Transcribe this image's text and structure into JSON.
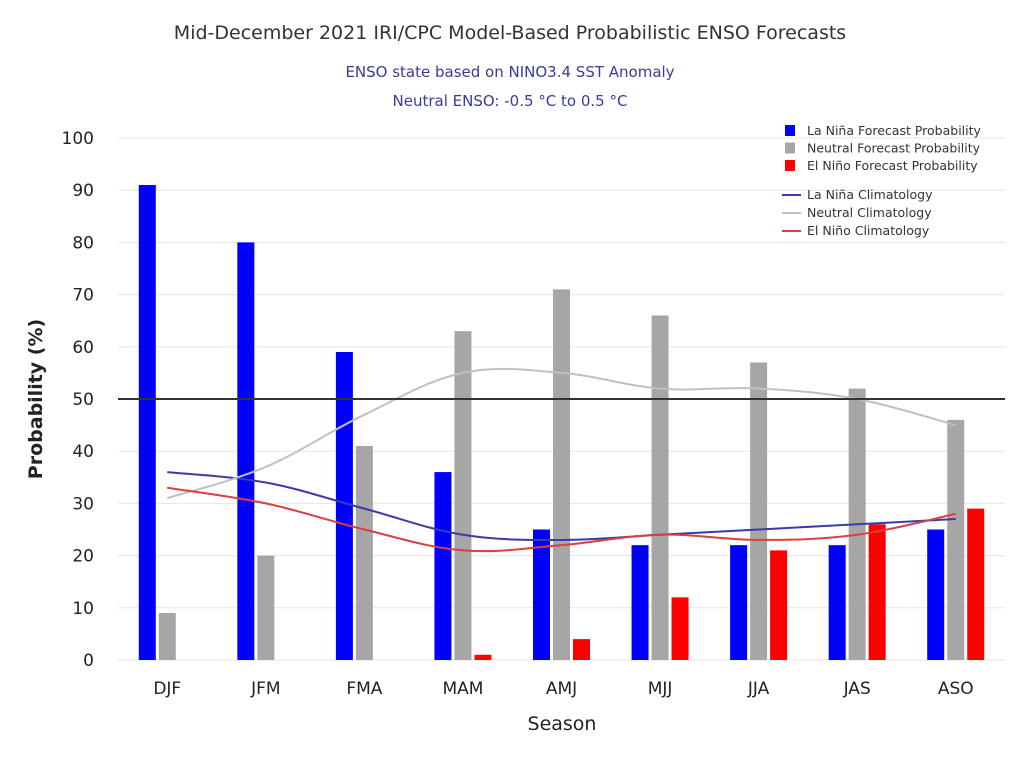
{
  "chart_data": {
    "type": "bar",
    "title": "Mid-December 2021 IRI/CPC Model-Based Probabilistic ENSO Forecasts",
    "subtitle_lines": [
      "ENSO state based on NINO3.4 SST Anomaly",
      "Neutral ENSO: -0.5 °C to 0.5 °C"
    ],
    "xlabel": "Season",
    "ylabel": "Probability (%)",
    "ylim": [
      0,
      100
    ],
    "yticks": [
      0,
      10,
      20,
      30,
      40,
      50,
      60,
      70,
      80,
      90,
      100
    ],
    "grid": true,
    "reference_line": 50,
    "legend_position": "top-right",
    "categories": [
      "DJF",
      "JFM",
      "FMA",
      "MAM",
      "AMJ",
      "MJJ",
      "JJA",
      "JAS",
      "ASO"
    ],
    "series": [
      {
        "name": "La Niña Forecast Probability",
        "color": "#0000ff",
        "values": [
          91,
          80,
          59,
          36,
          25,
          22,
          22,
          22,
          25
        ]
      },
      {
        "name": "Neutral Forecast Probability",
        "color": "#a6a6a6",
        "values": [
          9,
          20,
          41,
          63,
          71,
          66,
          57,
          52,
          46
        ]
      },
      {
        "name": "El Niño Forecast Probability",
        "color": "#ff0000",
        "values": [
          0,
          0,
          0,
          1,
          4,
          12,
          21,
          26,
          29
        ]
      }
    ],
    "climatology": [
      {
        "name": "La Niña Climatology",
        "color": "#3a3aaa",
        "values": [
          36,
          34,
          29,
          24,
          23,
          24,
          25,
          26,
          27
        ]
      },
      {
        "name": "Neutral Climatology",
        "color": "#c0c0c0",
        "values": [
          31,
          37,
          47,
          55,
          55,
          52,
          52,
          50,
          45
        ]
      },
      {
        "name": "El Niño Climatology",
        "color": "#d94040",
        "values": [
          33,
          30,
          25,
          21,
          22,
          24,
          23,
          24,
          28
        ]
      }
    ]
  }
}
